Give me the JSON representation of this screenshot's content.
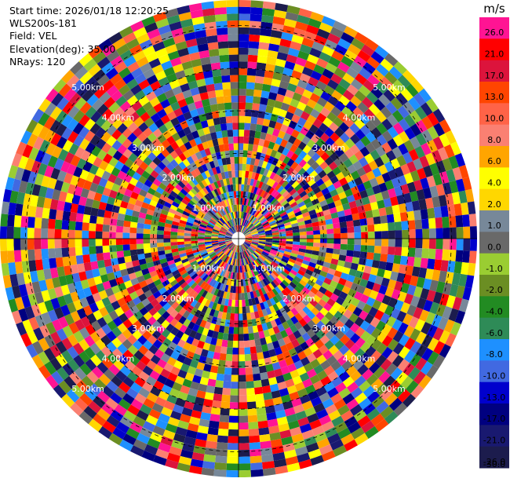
{
  "info": {
    "start_time": "Start time: 2026/01/18 12:20:25",
    "station": "WLS200s-181",
    "field": "Field: VEL",
    "elevation": "Elevation(deg): 35.00",
    "nrays": "NRays: 120"
  },
  "chart_data": {
    "type": "heatmap",
    "projection": "polar-ppi",
    "title": "",
    "xlabel": "",
    "ylabel": "",
    "field": "VEL",
    "elevation_deg": 35.0,
    "n_rays": 120,
    "range_rings": [
      {
        "label": "1.00km",
        "range_km": 1.0
      },
      {
        "label": "2.00km",
        "range_km": 2.0
      },
      {
        "label": "3.00km",
        "range_km": 3.0
      },
      {
        "label": "4.00km",
        "range_km": 4.0
      },
      {
        "label": "5.00km",
        "range_km": 5.0
      }
    ],
    "range_ring_labels_shown": [
      "1.00km",
      "2.00km",
      "3.00km",
      "4.00km",
      "5.00km"
    ],
    "max_range_km": 5.6,
    "ring_label_azimuths_deg": [
      45,
      135,
      225,
      315
    ],
    "colorbar": {
      "unit": "m/s",
      "placement": "right",
      "boundaries": [
        -30.0,
        -26.0,
        -21.0,
        -17.0,
        -13.0,
        -10.0,
        -8.0,
        -6.0,
        -4.0,
        -2.0,
        -1.0,
        0.0,
        1.0,
        2.0,
        4.0,
        6.0,
        8.0,
        10.0,
        13.0,
        17.0,
        21.0,
        26.0
      ],
      "tick_labels": [
        "26.0",
        "21.0",
        "17.0",
        "13.0",
        "10.0",
        "8.0",
        "6.0",
        "4.0",
        "2.0",
        "1.0",
        "0.0",
        "-1.0",
        "-2.0",
        "-4.0",
        "-6.0",
        "-8.0",
        "-10.0",
        "-13.0",
        "-17.0",
        "-21.0",
        "-26.0",
        "-30.0"
      ],
      "colors_top_to_bottom": [
        "#ff1493",
        "#ff0000",
        "#dc143c",
        "#ff4500",
        "#ff6347",
        "#fa8072",
        "#ffa500",
        "#ffff00",
        "#ffd700",
        "#778899",
        "#696969",
        "#9acd32",
        "#6b8e23",
        "#228b22",
        "#2e8b57",
        "#1e90ff",
        "#4169e1",
        "#0000cd",
        "#000080",
        "#191970",
        "#1c1c4d"
      ]
    },
    "note_values": "Velocity values per gate appear noisy/random; rendered procedurally from the colorbar palette"
  }
}
